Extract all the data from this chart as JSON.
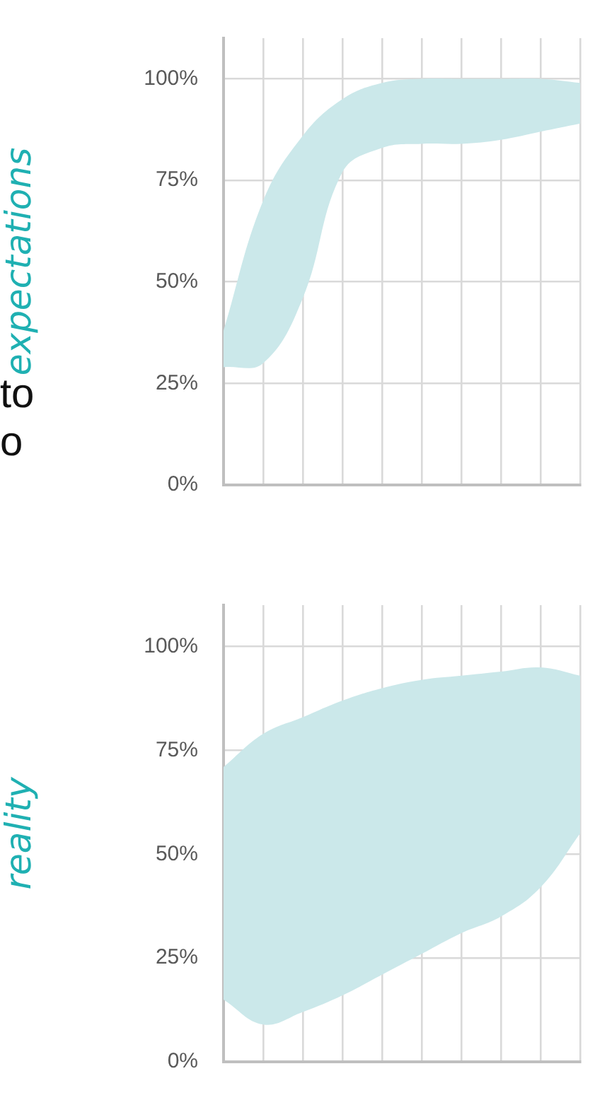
{
  "chart_data": [
    {
      "type": "area",
      "ylabel": "expectations",
      "annotations": [
        "to",
        "o"
      ],
      "categories": [
        null,
        null,
        null,
        null,
        null,
        null,
        null,
        null,
        null,
        null
      ],
      "ylim": [
        0,
        110
      ],
      "yticks": [
        {
          "value": 0,
          "label": "0%"
        },
        {
          "value": 25,
          "label": "25%"
        },
        {
          "value": 50,
          "label": "50%"
        },
        {
          "value": 75,
          "label": "75%"
        },
        {
          "value": 100,
          "label": "100%"
        }
      ],
      "grid": true,
      "tick_labels": "y",
      "series": [
        {
          "color": "#cbe8ea",
          "values": [
            null,
            null,
            null,
            null,
            null,
            null,
            null,
            null,
            null,
            null
          ],
          "lower": [
            29,
            30,
            46,
            77,
            83,
            84,
            84,
            85,
            87,
            89
          ],
          "upper": [
            38,
            70,
            86,
            95,
            99,
            100,
            100,
            100,
            100,
            99
          ]
        }
      ]
    },
    {
      "type": "area",
      "ylabel": "reality",
      "categories": [
        null,
        null,
        null,
        null,
        null,
        null,
        null,
        null,
        null,
        null
      ],
      "ylim": [
        0,
        110
      ],
      "yticks": [
        {
          "value": 0,
          "label": "0%"
        },
        {
          "value": 25,
          "label": "25%"
        },
        {
          "value": 50,
          "label": "50%"
        },
        {
          "value": 75,
          "label": "75%"
        },
        {
          "value": 100,
          "label": "100%"
        }
      ],
      "grid": true,
      "tick_labels": "y",
      "series": [
        {
          "color": "#cbe8ea",
          "values": [
            null,
            null,
            null,
            null,
            null,
            null,
            null,
            null,
            null,
            null
          ],
          "lower": [
            15,
            9,
            12,
            16,
            21,
            26,
            31,
            35,
            42,
            55
          ],
          "upper": [
            71,
            79,
            83,
            87,
            90,
            92,
            93,
            94,
            95,
            93
          ]
        }
      ]
    }
  ]
}
